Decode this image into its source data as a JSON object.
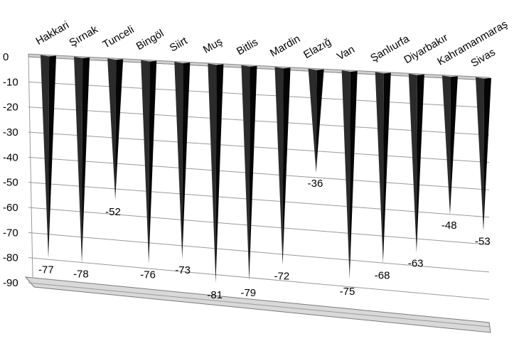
{
  "chart_data": {
    "type": "bar",
    "title": "",
    "xlabel": "",
    "ylabel": "",
    "ylim": [
      -90,
      0
    ],
    "yticks": [
      0,
      -10,
      -20,
      -30,
      -40,
      -50,
      -60,
      -70,
      -80,
      -90
    ],
    "grid": true,
    "legend": "none",
    "bar_shape": "cone",
    "colors": {
      "bar_front": "#2b2b2b",
      "bar_side": "#050505",
      "floor": "#d9d9d9",
      "grid": "#9a9a9a"
    },
    "categories": [
      "Hakkari",
      "Şırnak",
      "Tunceli",
      "Bingöl",
      "Siirt",
      "Muş",
      "Bitlis",
      "Mardin",
      "Elazığ",
      "Van",
      "Şanlıurfa",
      "Diyarbakır",
      "Kahramanmaraş",
      "Sivas"
    ],
    "values": [
      -77,
      -78,
      -52,
      -76,
      -73,
      -81,
      -79,
      -72,
      -36,
      -75,
      -68,
      -63,
      -48,
      -53
    ]
  }
}
